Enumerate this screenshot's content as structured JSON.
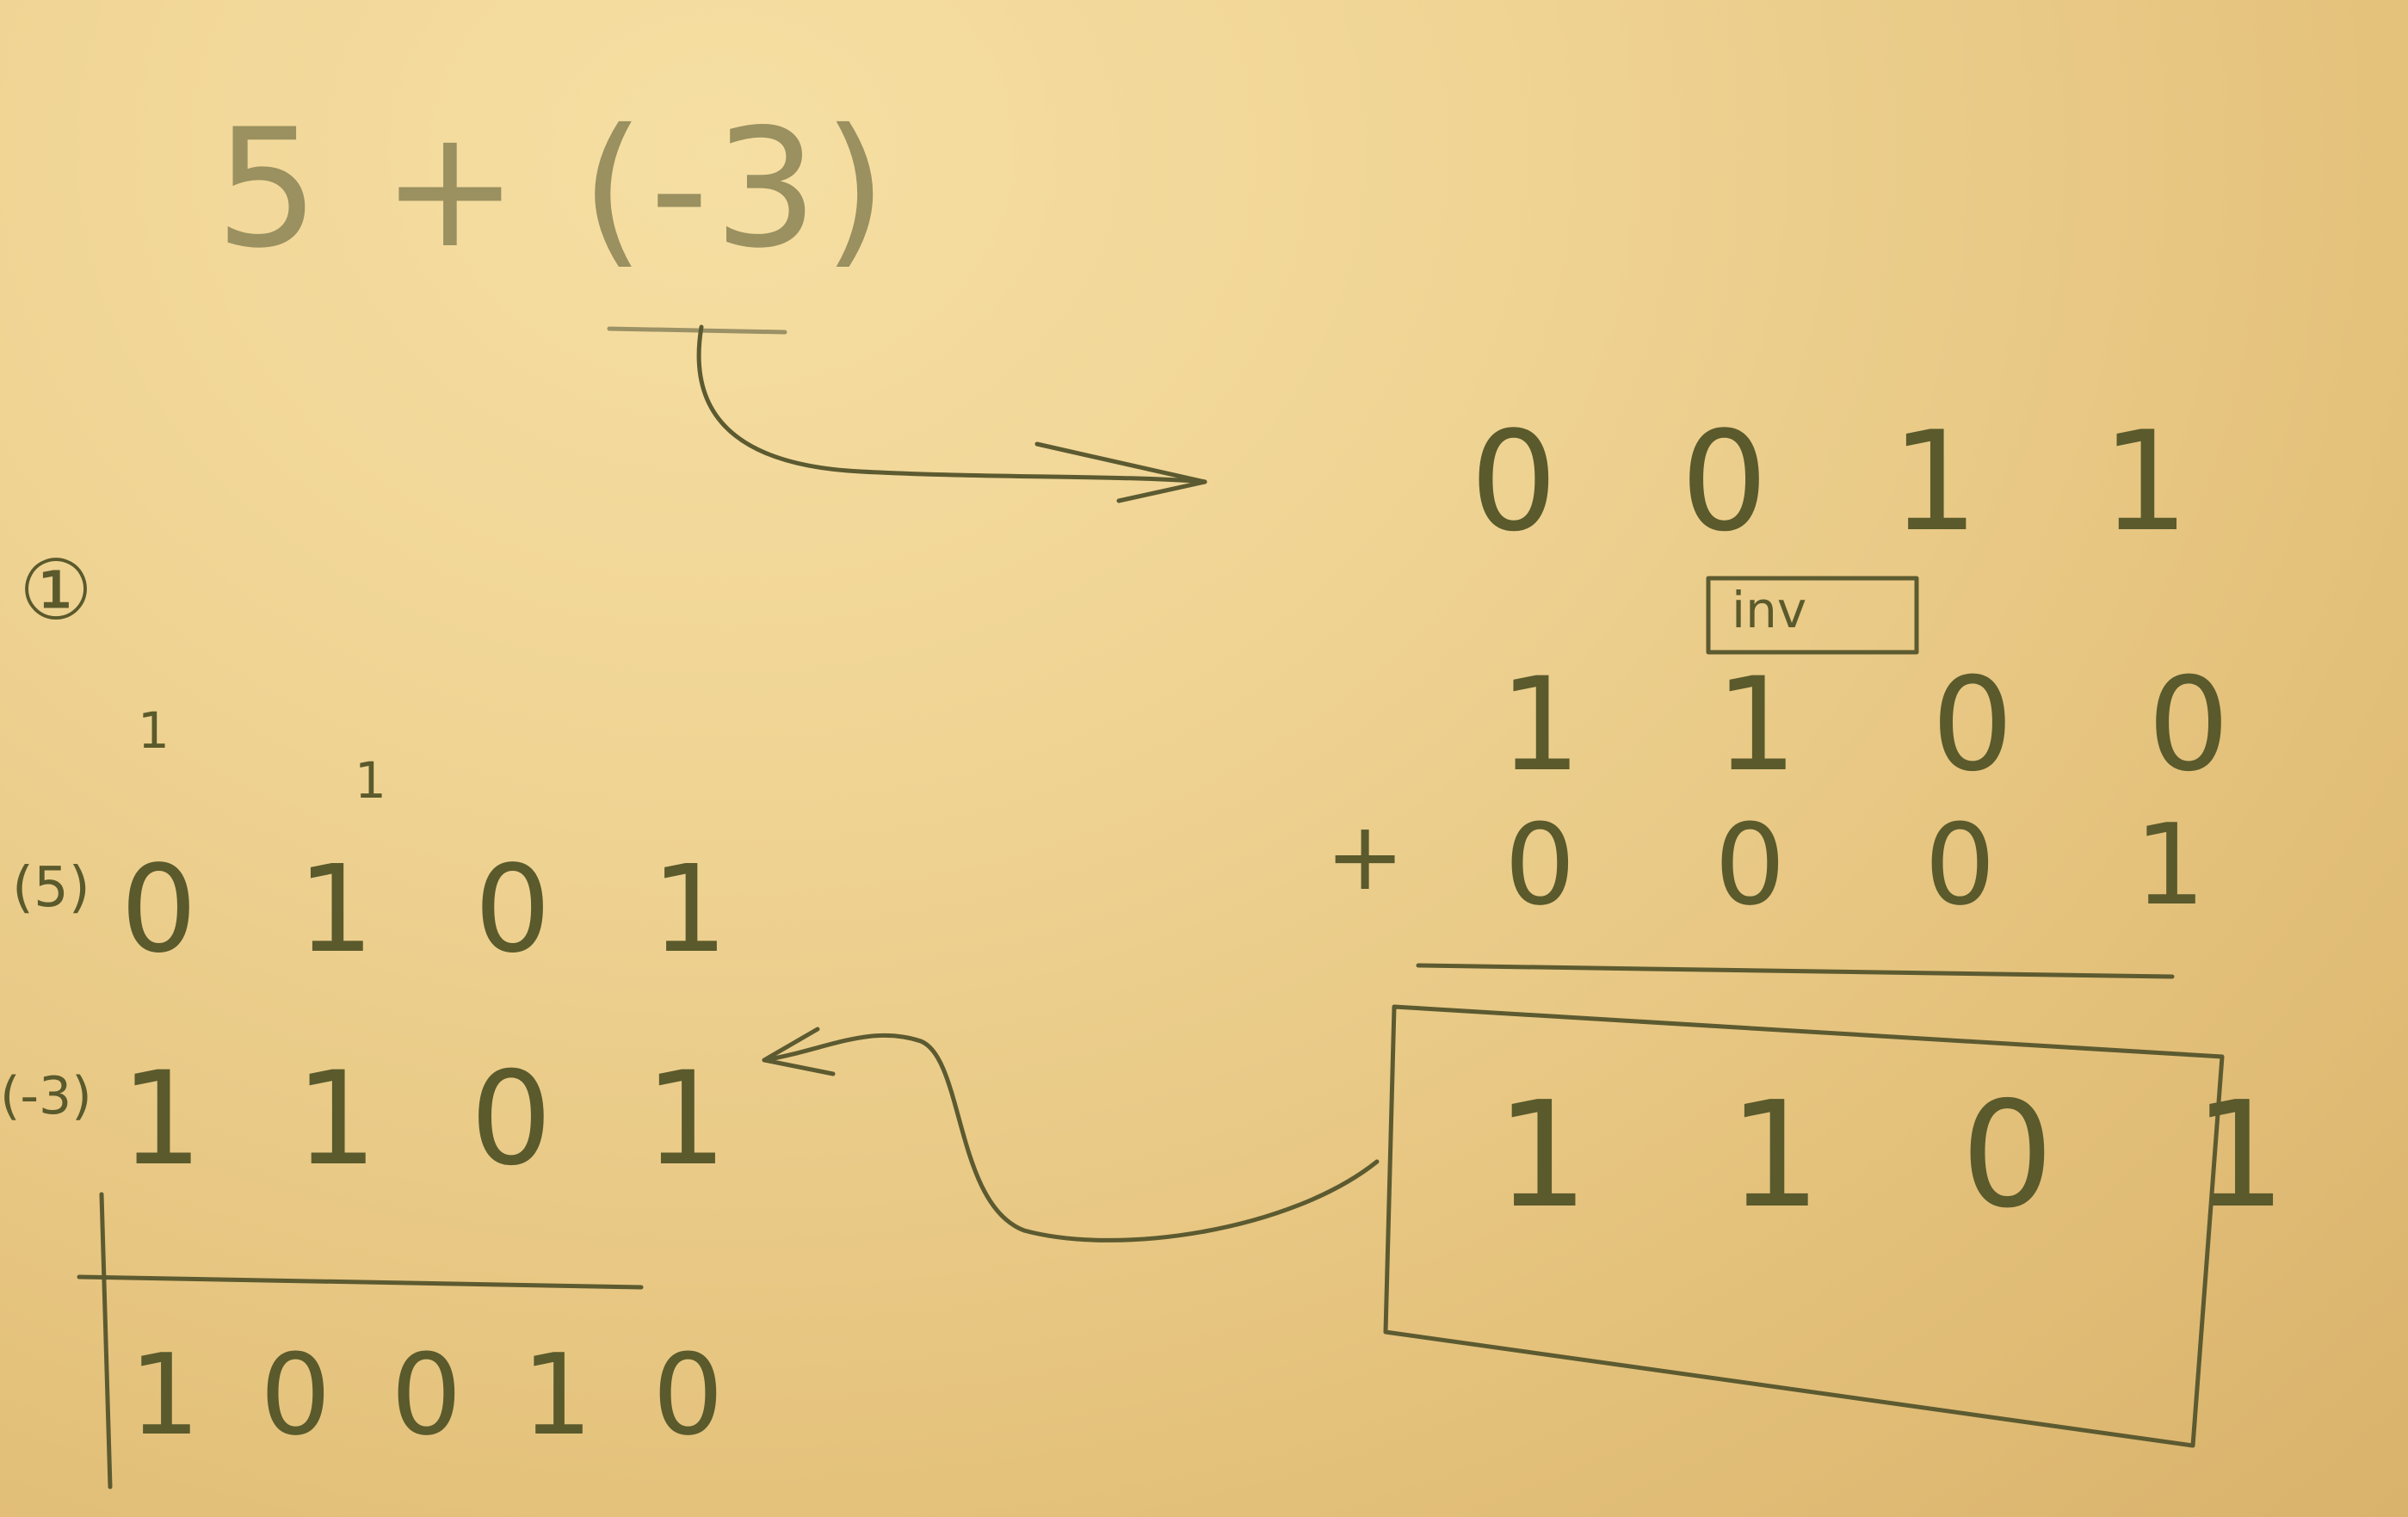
{
  "expression": "5 + (-3)",
  "step_marker": "①",
  "right": {
    "row1": "0 0 1 1",
    "box_label": "inv",
    "row2": "1 1 0 0",
    "row3_op": "+",
    "row3": "0 0 0 1",
    "result": "1 1 0 1"
  },
  "left": {
    "carry1": "1",
    "carry2": "1",
    "label_5": "(5)",
    "row_5": "0 1 0 1",
    "label_3": "(-3)",
    "row_3": "1 1 0 1",
    "result": "1 0 0 1 0"
  }
}
